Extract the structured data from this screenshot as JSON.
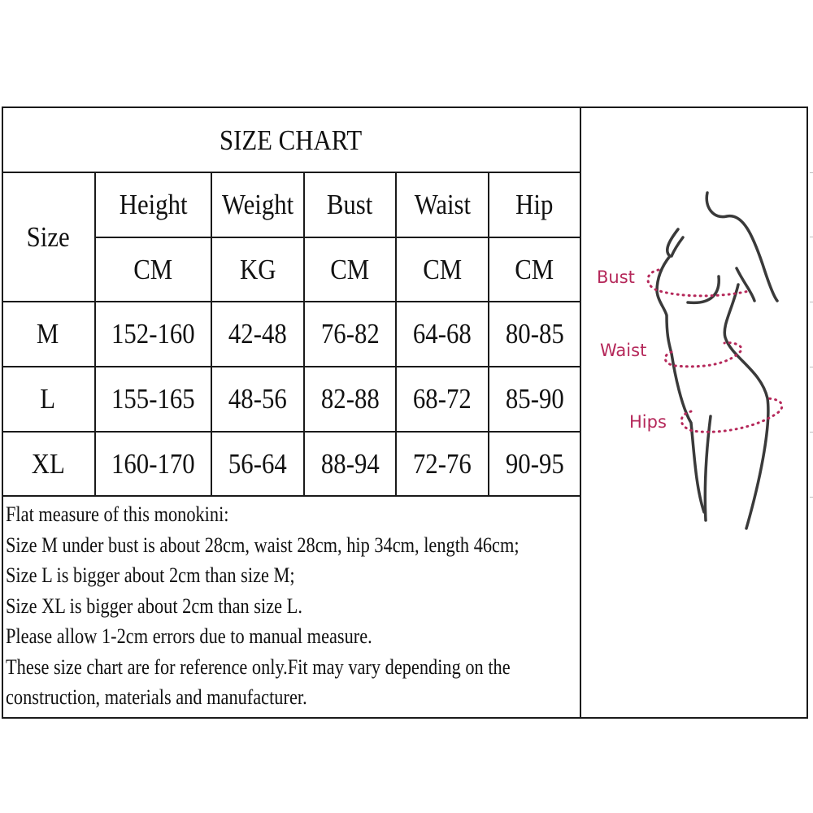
{
  "title": "SIZE CHART",
  "header": {
    "size_label": "Size",
    "columns": [
      {
        "name": "Height",
        "unit": "CM"
      },
      {
        "name": "Weight",
        "unit": "KG"
      },
      {
        "name": "Bust",
        "unit": "CM"
      },
      {
        "name": "Waist",
        "unit": "CM"
      },
      {
        "name": "Hip",
        "unit": "CM"
      }
    ]
  },
  "rows": [
    {
      "size": "M",
      "values": [
        "152-160",
        "42-48",
        "76-82",
        "64-68",
        "80-85"
      ]
    },
    {
      "size": "L",
      "values": [
        "155-165",
        "48-56",
        "82-88",
        "68-72",
        "85-90"
      ]
    },
    {
      "size": "XL",
      "values": [
        "160-170",
        "56-64",
        "88-94",
        "72-76",
        "90-95"
      ]
    }
  ],
  "notes": [
    "Flat measure of this monokini:",
    "Size M under bust is about 28cm, waist 28cm, hip 34cm, length 46cm;",
    "Size L is bigger about 2cm than size M;",
    "Size XL is bigger about 2cm than size L.",
    "Please allow 1-2cm errors due to manual measure.",
    "These size chart are for reference only.Fit may vary depending on the",
    "construction, materials and manufacturer."
  ],
  "figure": {
    "labels": {
      "bust": "Bust",
      "waist": "Waist",
      "hips": "Hips"
    },
    "label_color": "#b5285a",
    "outline_color": "#3a3a3a"
  }
}
